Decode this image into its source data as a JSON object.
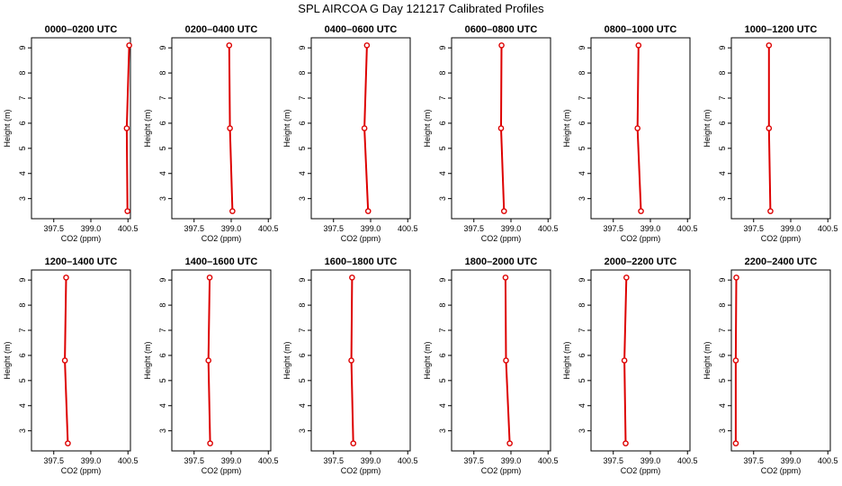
{
  "title": "SPL AIRCOA G  Day 121217  Calibrated Profiles",
  "colors": {
    "series": "#dd0000",
    "axis": "#000000",
    "background": "#ffffff"
  },
  "chart_data": [
    {
      "type": "line",
      "title": "0000–0200 UTC",
      "xlabel": "CO2 (ppm)",
      "ylabel": "Height (m)",
      "xlim": [
        396.6,
        400.6
      ],
      "ylim": [
        2.2,
        9.4
      ],
      "xticks": [
        "397.5",
        "399.0",
        "400.5"
      ],
      "yticks": [
        "3",
        "4",
        "5",
        "6",
        "7",
        "8",
        "9"
      ],
      "grid": false,
      "series": [
        {
          "x": [
            400.48,
            400.45,
            400.55
          ],
          "y": [
            2.5,
            5.8,
            9.1
          ]
        }
      ]
    },
    {
      "type": "line",
      "title": "0200–0400 UTC",
      "xlabel": "CO2 (ppm)",
      "ylabel": "Height (m)",
      "xlim": [
        396.6,
        400.6
      ],
      "ylim": [
        2.2,
        9.4
      ],
      "xticks": [
        "397.5",
        "399.0",
        "400.5"
      ],
      "yticks": [
        "3",
        "4",
        "5",
        "6",
        "7",
        "8",
        "9"
      ],
      "grid": false,
      "series": [
        {
          "x": [
            399.05,
            398.95,
            398.92
          ],
          "y": [
            2.5,
            5.8,
            9.1
          ]
        }
      ]
    },
    {
      "type": "line",
      "title": "0400–0600 UTC",
      "xlabel": "CO2 (ppm)",
      "ylabel": "Height (m)",
      "xlim": [
        396.6,
        400.6
      ],
      "ylim": [
        2.2,
        9.4
      ],
      "xticks": [
        "397.5",
        "399.0",
        "400.5"
      ],
      "yticks": [
        "3",
        "4",
        "5",
        "6",
        "7",
        "8",
        "9"
      ],
      "grid": false,
      "series": [
        {
          "x": [
            398.9,
            398.75,
            398.85
          ],
          "y": [
            2.5,
            5.8,
            9.1
          ]
        }
      ]
    },
    {
      "type": "line",
      "title": "0600–0800 UTC",
      "xlabel": "CO2 (ppm)",
      "ylabel": "Height (m)",
      "xlim": [
        396.6,
        400.6
      ],
      "ylim": [
        2.2,
        9.4
      ],
      "xticks": [
        "397.5",
        "399.0",
        "400.5"
      ],
      "yticks": [
        "3",
        "4",
        "5",
        "6",
        "7",
        "8",
        "9"
      ],
      "grid": false,
      "series": [
        {
          "x": [
            398.72,
            398.6,
            398.62
          ],
          "y": [
            2.5,
            5.8,
            9.1
          ]
        }
      ]
    },
    {
      "type": "line",
      "title": "0800–1000 UTC",
      "xlabel": "CO2 (ppm)",
      "ylabel": "Height (m)",
      "xlim": [
        396.6,
        400.6
      ],
      "ylim": [
        2.2,
        9.4
      ],
      "xticks": [
        "397.5",
        "399.0",
        "400.5"
      ],
      "yticks": [
        "3",
        "4",
        "5",
        "6",
        "7",
        "8",
        "9"
      ],
      "grid": false,
      "series": [
        {
          "x": [
            398.62,
            398.48,
            398.52
          ],
          "y": [
            2.5,
            5.8,
            9.1
          ]
        }
      ]
    },
    {
      "type": "line",
      "title": "1000–1200 UTC",
      "xlabel": "CO2 (ppm)",
      "ylabel": "Height (m)",
      "xlim": [
        396.6,
        400.6
      ],
      "ylim": [
        2.2,
        9.4
      ],
      "xticks": [
        "397.5",
        "399.0",
        "400.5"
      ],
      "yticks": [
        "3",
        "4",
        "5",
        "6",
        "7",
        "8",
        "9"
      ],
      "grid": false,
      "series": [
        {
          "x": [
            398.18,
            398.12,
            398.12
          ],
          "y": [
            2.5,
            5.8,
            9.1
          ]
        }
      ]
    },
    {
      "type": "line",
      "title": "1200–1400 UTC",
      "xlabel": "CO2 (ppm)",
      "ylabel": "Height (m)",
      "xlim": [
        396.6,
        400.6
      ],
      "ylim": [
        2.2,
        9.4
      ],
      "xticks": [
        "397.5",
        "399.0",
        "400.5"
      ],
      "yticks": [
        "3",
        "4",
        "5",
        "6",
        "7",
        "8",
        "9"
      ],
      "grid": false,
      "series": [
        {
          "x": [
            398.07,
            397.95,
            398.0
          ],
          "y": [
            2.5,
            5.8,
            9.1
          ]
        }
      ]
    },
    {
      "type": "line",
      "title": "1400–1600 UTC",
      "xlabel": "CO2 (ppm)",
      "ylabel": "Height (m)",
      "xlim": [
        396.6,
        400.6
      ],
      "ylim": [
        2.2,
        9.4
      ],
      "xticks": [
        "397.5",
        "399.0",
        "400.5"
      ],
      "yticks": [
        "3",
        "4",
        "5",
        "6",
        "7",
        "8",
        "9"
      ],
      "grid": false,
      "series": [
        {
          "x": [
            398.15,
            398.08,
            398.13
          ],
          "y": [
            2.5,
            5.8,
            9.1
          ]
        }
      ]
    },
    {
      "type": "line",
      "title": "1600–1800 UTC",
      "xlabel": "CO2 (ppm)",
      "ylabel": "Height (m)",
      "xlim": [
        396.6,
        400.6
      ],
      "ylim": [
        2.2,
        9.4
      ],
      "xticks": [
        "397.5",
        "399.0",
        "400.5"
      ],
      "yticks": [
        "3",
        "4",
        "5",
        "6",
        "7",
        "8",
        "9"
      ],
      "grid": false,
      "series": [
        {
          "x": [
            398.3,
            398.22,
            398.25
          ],
          "y": [
            2.5,
            5.8,
            9.1
          ]
        }
      ]
    },
    {
      "type": "line",
      "title": "1800–2000 UTC",
      "xlabel": "CO2 (ppm)",
      "ylabel": "Height (m)",
      "xlim": [
        396.6,
        400.6
      ],
      "ylim": [
        2.2,
        9.4
      ],
      "xticks": [
        "397.5",
        "399.0",
        "400.5"
      ],
      "yticks": [
        "3",
        "4",
        "5",
        "6",
        "7",
        "8",
        "9"
      ],
      "grid": false,
      "series": [
        {
          "x": [
            398.95,
            398.8,
            398.78
          ],
          "y": [
            2.5,
            5.8,
            9.1
          ]
        }
      ]
    },
    {
      "type": "line",
      "title": "2000–2200 UTC",
      "xlabel": "CO2 (ppm)",
      "ylabel": "Height (m)",
      "xlim": [
        396.6,
        400.6
      ],
      "ylim": [
        2.2,
        9.4
      ],
      "xticks": [
        "397.5",
        "399.0",
        "400.5"
      ],
      "yticks": [
        "3",
        "4",
        "5",
        "6",
        "7",
        "8",
        "9"
      ],
      "grid": false,
      "series": [
        {
          "x": [
            398.0,
            397.95,
            398.03
          ],
          "y": [
            2.5,
            5.8,
            9.1
          ]
        }
      ]
    },
    {
      "type": "line",
      "title": "2200–2400 UTC",
      "xlabel": "CO2 (ppm)",
      "ylabel": "Height (m)",
      "xlim": [
        396.6,
        400.6
      ],
      "ylim": [
        2.2,
        9.4
      ],
      "xticks": [
        "397.5",
        "399.0",
        "400.5"
      ],
      "yticks": [
        "3",
        "4",
        "5",
        "6",
        "7",
        "8",
        "9"
      ],
      "grid": false,
      "series": [
        {
          "x": [
            396.78,
            396.78,
            396.8
          ],
          "y": [
            2.5,
            5.8,
            9.1
          ]
        }
      ]
    }
  ]
}
